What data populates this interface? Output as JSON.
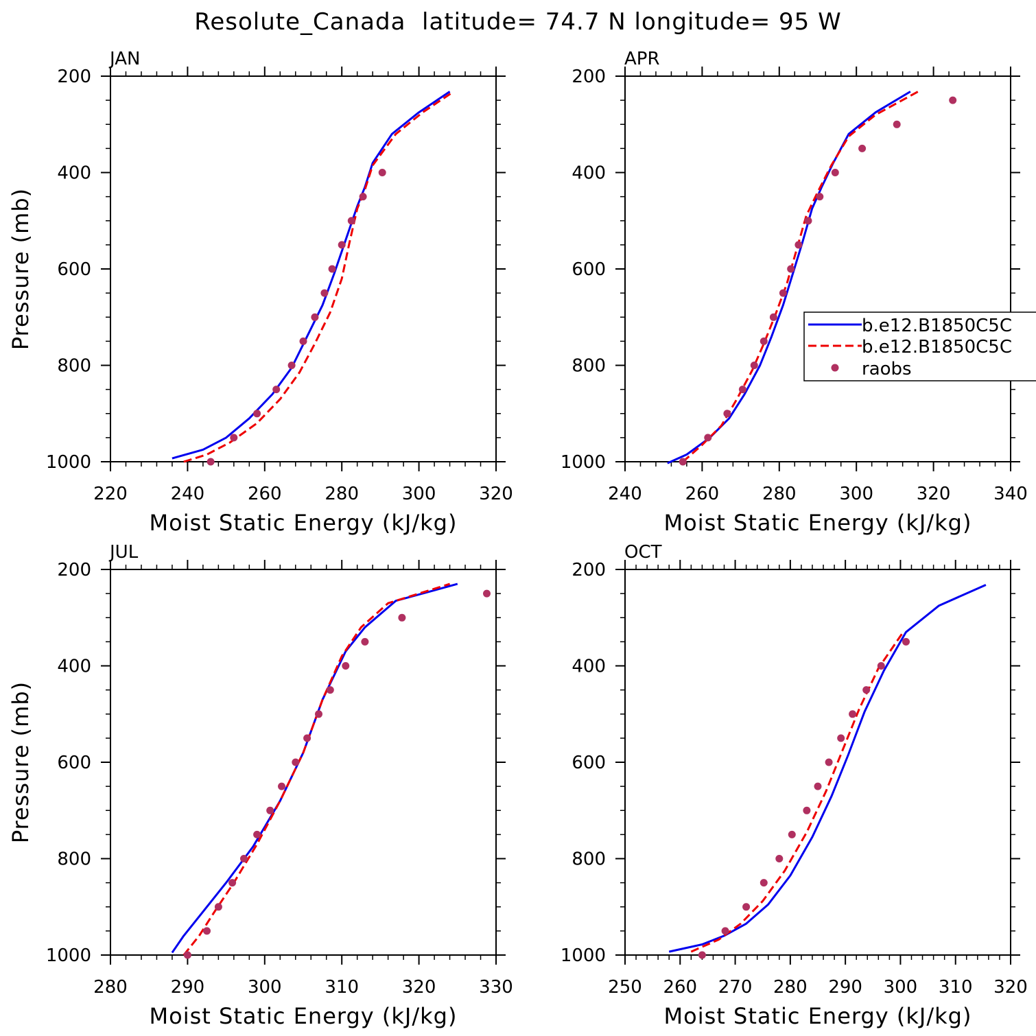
{
  "title": "Resolute_Canada  latitude= 74.7 N longitude= 95 W",
  "legend": {
    "entries": [
      "b.e12.B1850C5C",
      "b.e12.B1850C5C",
      "raobs"
    ]
  },
  "colors": {
    "model1": "#0000ee",
    "model2": "#ee0000",
    "obs": "#b03060"
  },
  "chart_data": [
    {
      "type": "line",
      "panel": "JAN",
      "xlabel": "Moist Static Energy (kJ/kg)",
      "ylabel": "Pressure (mb)",
      "xlim": [
        220,
        320
      ],
      "ylim": [
        1000,
        200
      ],
      "xticks": [
        220,
        240,
        260,
        280,
        300,
        320
      ],
      "yticks": [
        200,
        400,
        600,
        800,
        1000
      ],
      "series": [
        {
          "x": [
            236,
            244,
            250,
            256,
            262,
            267,
            271,
            275,
            278,
            281,
            284,
            286,
            288,
            293,
            300,
            308
          ],
          "y": [
            993,
            975,
            950,
            910,
            860,
            805,
            740,
            675,
            610,
            540,
            470,
            430,
            380,
            320,
            275,
            232
          ]
        },
        {
          "x": [
            239,
            245,
            251,
            258,
            264,
            269,
            273,
            277,
            280,
            282,
            284,
            286,
            288,
            294,
            301,
            309
          ],
          "y": [
            1000,
            985,
            960,
            920,
            870,
            815,
            755,
            690,
            620,
            545,
            475,
            435,
            385,
            320,
            275,
            232
          ]
        },
        {
          "x": [
            246,
            252,
            258,
            263,
            267,
            270,
            273,
            275.5,
            277.5,
            280,
            282.5,
            285.5,
            290.5
          ],
          "y": [
            1000,
            950,
            900,
            850,
            800,
            750,
            700,
            650,
            600,
            550,
            500,
            450,
            400
          ]
        }
      ]
    },
    {
      "type": "line",
      "panel": "APR",
      "xlabel": "Moist Static Energy (kJ/kg)",
      "ylabel": "",
      "xlim": [
        240,
        340
      ],
      "ylim": [
        1000,
        200
      ],
      "xticks": [
        240,
        260,
        280,
        300,
        320,
        340
      ],
      "yticks": [
        200,
        400,
        600,
        800,
        1000
      ],
      "legend_position": "right",
      "series": [
        {
          "x": [
            251,
            256,
            262,
            267,
            271,
            275,
            278,
            281,
            283.5,
            286,
            288.5,
            291,
            294,
            298,
            305,
            314
          ],
          "y": [
            1003,
            985,
            950,
            910,
            860,
            800,
            740,
            675,
            610,
            545,
            475,
            430,
            380,
            320,
            275,
            232
          ]
        },
        {
          "x": [
            255,
            260,
            265,
            269,
            273,
            276,
            279,
            282,
            284.5,
            287,
            290,
            293.5,
            298,
            305,
            316
          ],
          "y": [
            1000,
            965,
            925,
            870,
            810,
            755,
            695,
            630,
            560,
            490,
            440,
            385,
            325,
            280,
            232
          ]
        },
        {
          "x": [
            255,
            261.5,
            266.5,
            270.5,
            273.5,
            276,
            278.5,
            281,
            283,
            285,
            287.5,
            290.5,
            294.5,
            301.5,
            310.5,
            325
          ],
          "y": [
            1000,
            950,
            900,
            850,
            800,
            750,
            700,
            650,
            600,
            550,
            500,
            450,
            400,
            350,
            300,
            250
          ]
        }
      ]
    },
    {
      "type": "line",
      "panel": "JUL",
      "xlabel": "Moist Static Energy (kJ/kg)",
      "ylabel": "Pressure (mb)",
      "xlim": [
        280,
        330
      ],
      "ylim": [
        1000,
        200
      ],
      "xticks": [
        280,
        290,
        300,
        310,
        320,
        330
      ],
      "yticks": [
        200,
        400,
        600,
        800,
        1000
      ],
      "series": [
        {
          "x": [
            288,
            289.5,
            292,
            295,
            298.5,
            302,
            305,
            307.5,
            310.5,
            313,
            317,
            325
          ],
          "y": [
            995,
            960,
            910,
            850,
            775,
            680,
            580,
            470,
            370,
            320,
            265,
            230
          ]
        },
        {
          "x": [
            289.5,
            291.5,
            293.5,
            296,
            299,
            302,
            305,
            307.5,
            310,
            312.5,
            316,
            324
          ],
          "y": [
            1000,
            960,
            910,
            850,
            770,
            680,
            580,
            470,
            380,
            320,
            270,
            230
          ]
        },
        {
          "x": [
            290,
            292.5,
            294,
            295.8,
            297.3,
            299,
            300.7,
            302.2,
            304,
            305.5,
            307,
            308.5,
            310.5,
            313,
            317.8,
            328.8
          ],
          "y": [
            1000,
            950,
            900,
            850,
            800,
            750,
            700,
            650,
            600,
            550,
            500,
            450,
            400,
            350,
            300,
            250
          ]
        }
      ]
    },
    {
      "type": "line",
      "panel": "OCT",
      "xlabel": "Moist Static Energy (kJ/kg)",
      "ylabel": "",
      "xlim": [
        250,
        320
      ],
      "ylim": [
        1000,
        200
      ],
      "xticks": [
        250,
        260,
        270,
        280,
        290,
        300,
        310,
        320
      ],
      "yticks": [
        200,
        400,
        600,
        800,
        1000
      ],
      "series": [
        {
          "x": [
            258,
            264,
            268,
            272,
            276,
            280,
            284,
            287.5,
            290.5,
            293.5,
            297,
            301,
            307,
            315.5
          ],
          "y": [
            993,
            978,
            960,
            935,
            895,
            835,
            755,
            670,
            585,
            495,
            410,
            330,
            275,
            232
          ]
        },
        {
          "x": [
            262,
            267,
            271,
            275,
            279,
            283,
            286.5,
            289.5,
            292.5,
            296,
            300.5
          ],
          "y": [
            993,
            968,
            935,
            888,
            825,
            745,
            660,
            575,
            490,
            405,
            330
          ]
        },
        {
          "x": [
            264,
            268.2,
            272,
            275.2,
            278,
            280.3,
            283,
            285,
            287,
            289.2,
            291.3,
            293.8,
            296.5,
            301
          ],
          "y": [
            1000,
            950,
            900,
            850,
            800,
            750,
            700,
            650,
            600,
            550,
            500,
            450,
            400,
            350
          ]
        }
      ]
    }
  ]
}
